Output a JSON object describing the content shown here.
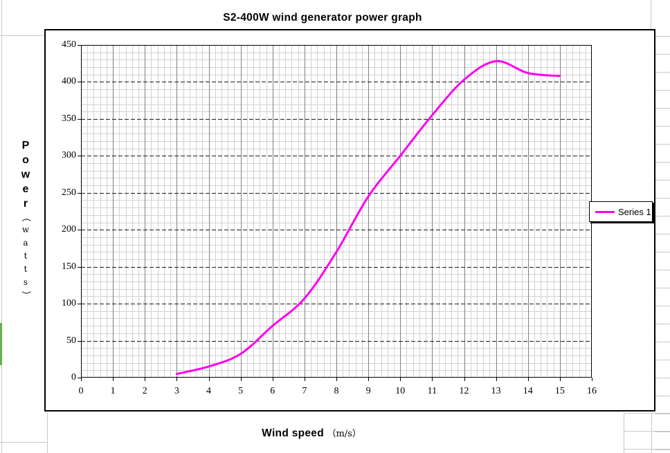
{
  "sheet": {
    "green_marker_color": "#5FB44A"
  },
  "chart": {
    "title": "S2-400W wind generator power graph",
    "x_axis": {
      "label_main": "Wind speed",
      "label_unit": "（m/s）"
    },
    "y_axis": {
      "label_main": "Power",
      "label_unit": "watts",
      "paren_open": "（",
      "paren_close": "）"
    },
    "legend": {
      "series_label": "Series 1"
    }
  },
  "chart_data": {
    "type": "line",
    "title": "S2-400W wind generator power graph",
    "xlabel": "Wind speed (m/s)",
    "ylabel": "Power (watts)",
    "xlim": [
      0,
      16
    ],
    "ylim": [
      0,
      450
    ],
    "x_tick_step": 1,
    "y_tick_step": 50,
    "x_minor_step": 0.2,
    "y_minor_step": 10,
    "grid": "major+minor",
    "legend_position": "right",
    "series": [
      {
        "name": "Series 1",
        "color": "#FF00EE",
        "x": [
          3,
          4,
          5,
          6,
          7,
          8,
          9,
          10,
          11,
          12,
          13,
          14,
          15
        ],
        "y": [
          5,
          15,
          32,
          70,
          107,
          170,
          245,
          300,
          355,
          403,
          428,
          412,
          408
        ]
      }
    ]
  },
  "colors": {
    "curve": "#FF00EE",
    "minor_grid": "#d2d2d2",
    "major_v_grid": "#7f7f7f",
    "major_h_grid": "#1a1a1a",
    "sheet_grid": "#c9c9c9"
  }
}
